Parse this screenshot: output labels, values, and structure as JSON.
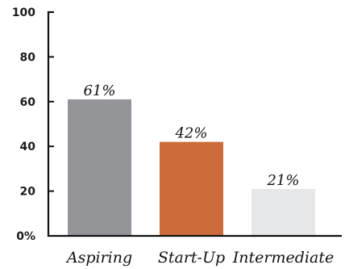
{
  "chart_data": {
    "type": "bar",
    "categories": [
      "Aspiring",
      "Start-Up",
      "Intermediate"
    ],
    "values": [
      61,
      42,
      21
    ],
    "data_labels": [
      "61%",
      "42%",
      "21%"
    ],
    "y_tick_labels": [
      "0%",
      "20",
      "40",
      "60",
      "80",
      "100"
    ],
    "y_ticks": [
      0,
      20,
      40,
      60,
      80,
      100
    ],
    "ylim": [
      0,
      100
    ],
    "grid": false,
    "colors": [
      "#939598",
      "#cd6c3b",
      "#e6e7e8"
    ]
  }
}
